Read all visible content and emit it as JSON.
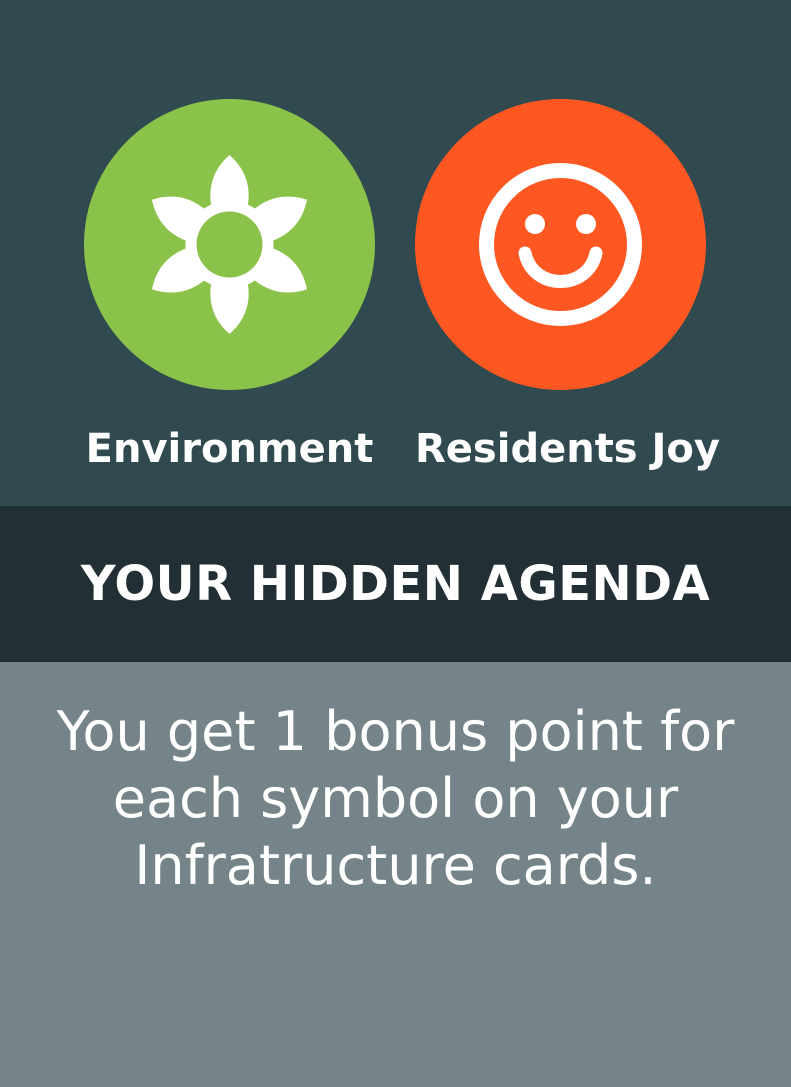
{
  "colors": {
    "top_background": "#304a50",
    "band_background": "#222f35",
    "bottom_background": "#758488",
    "environment_circle": "#8bc34a",
    "joy_circle": "#ff5722",
    "icon_fill": "#ffffff"
  },
  "symbols": [
    {
      "icon": "flower-icon",
      "label": "Environment"
    },
    {
      "icon": "smiley-face-icon",
      "label": "Residents Joy"
    }
  ],
  "agenda": {
    "title": "YOUR HIDDEN AGENDA",
    "description": "You get 1 bonus point for each symbol on your Infratructure cards."
  }
}
